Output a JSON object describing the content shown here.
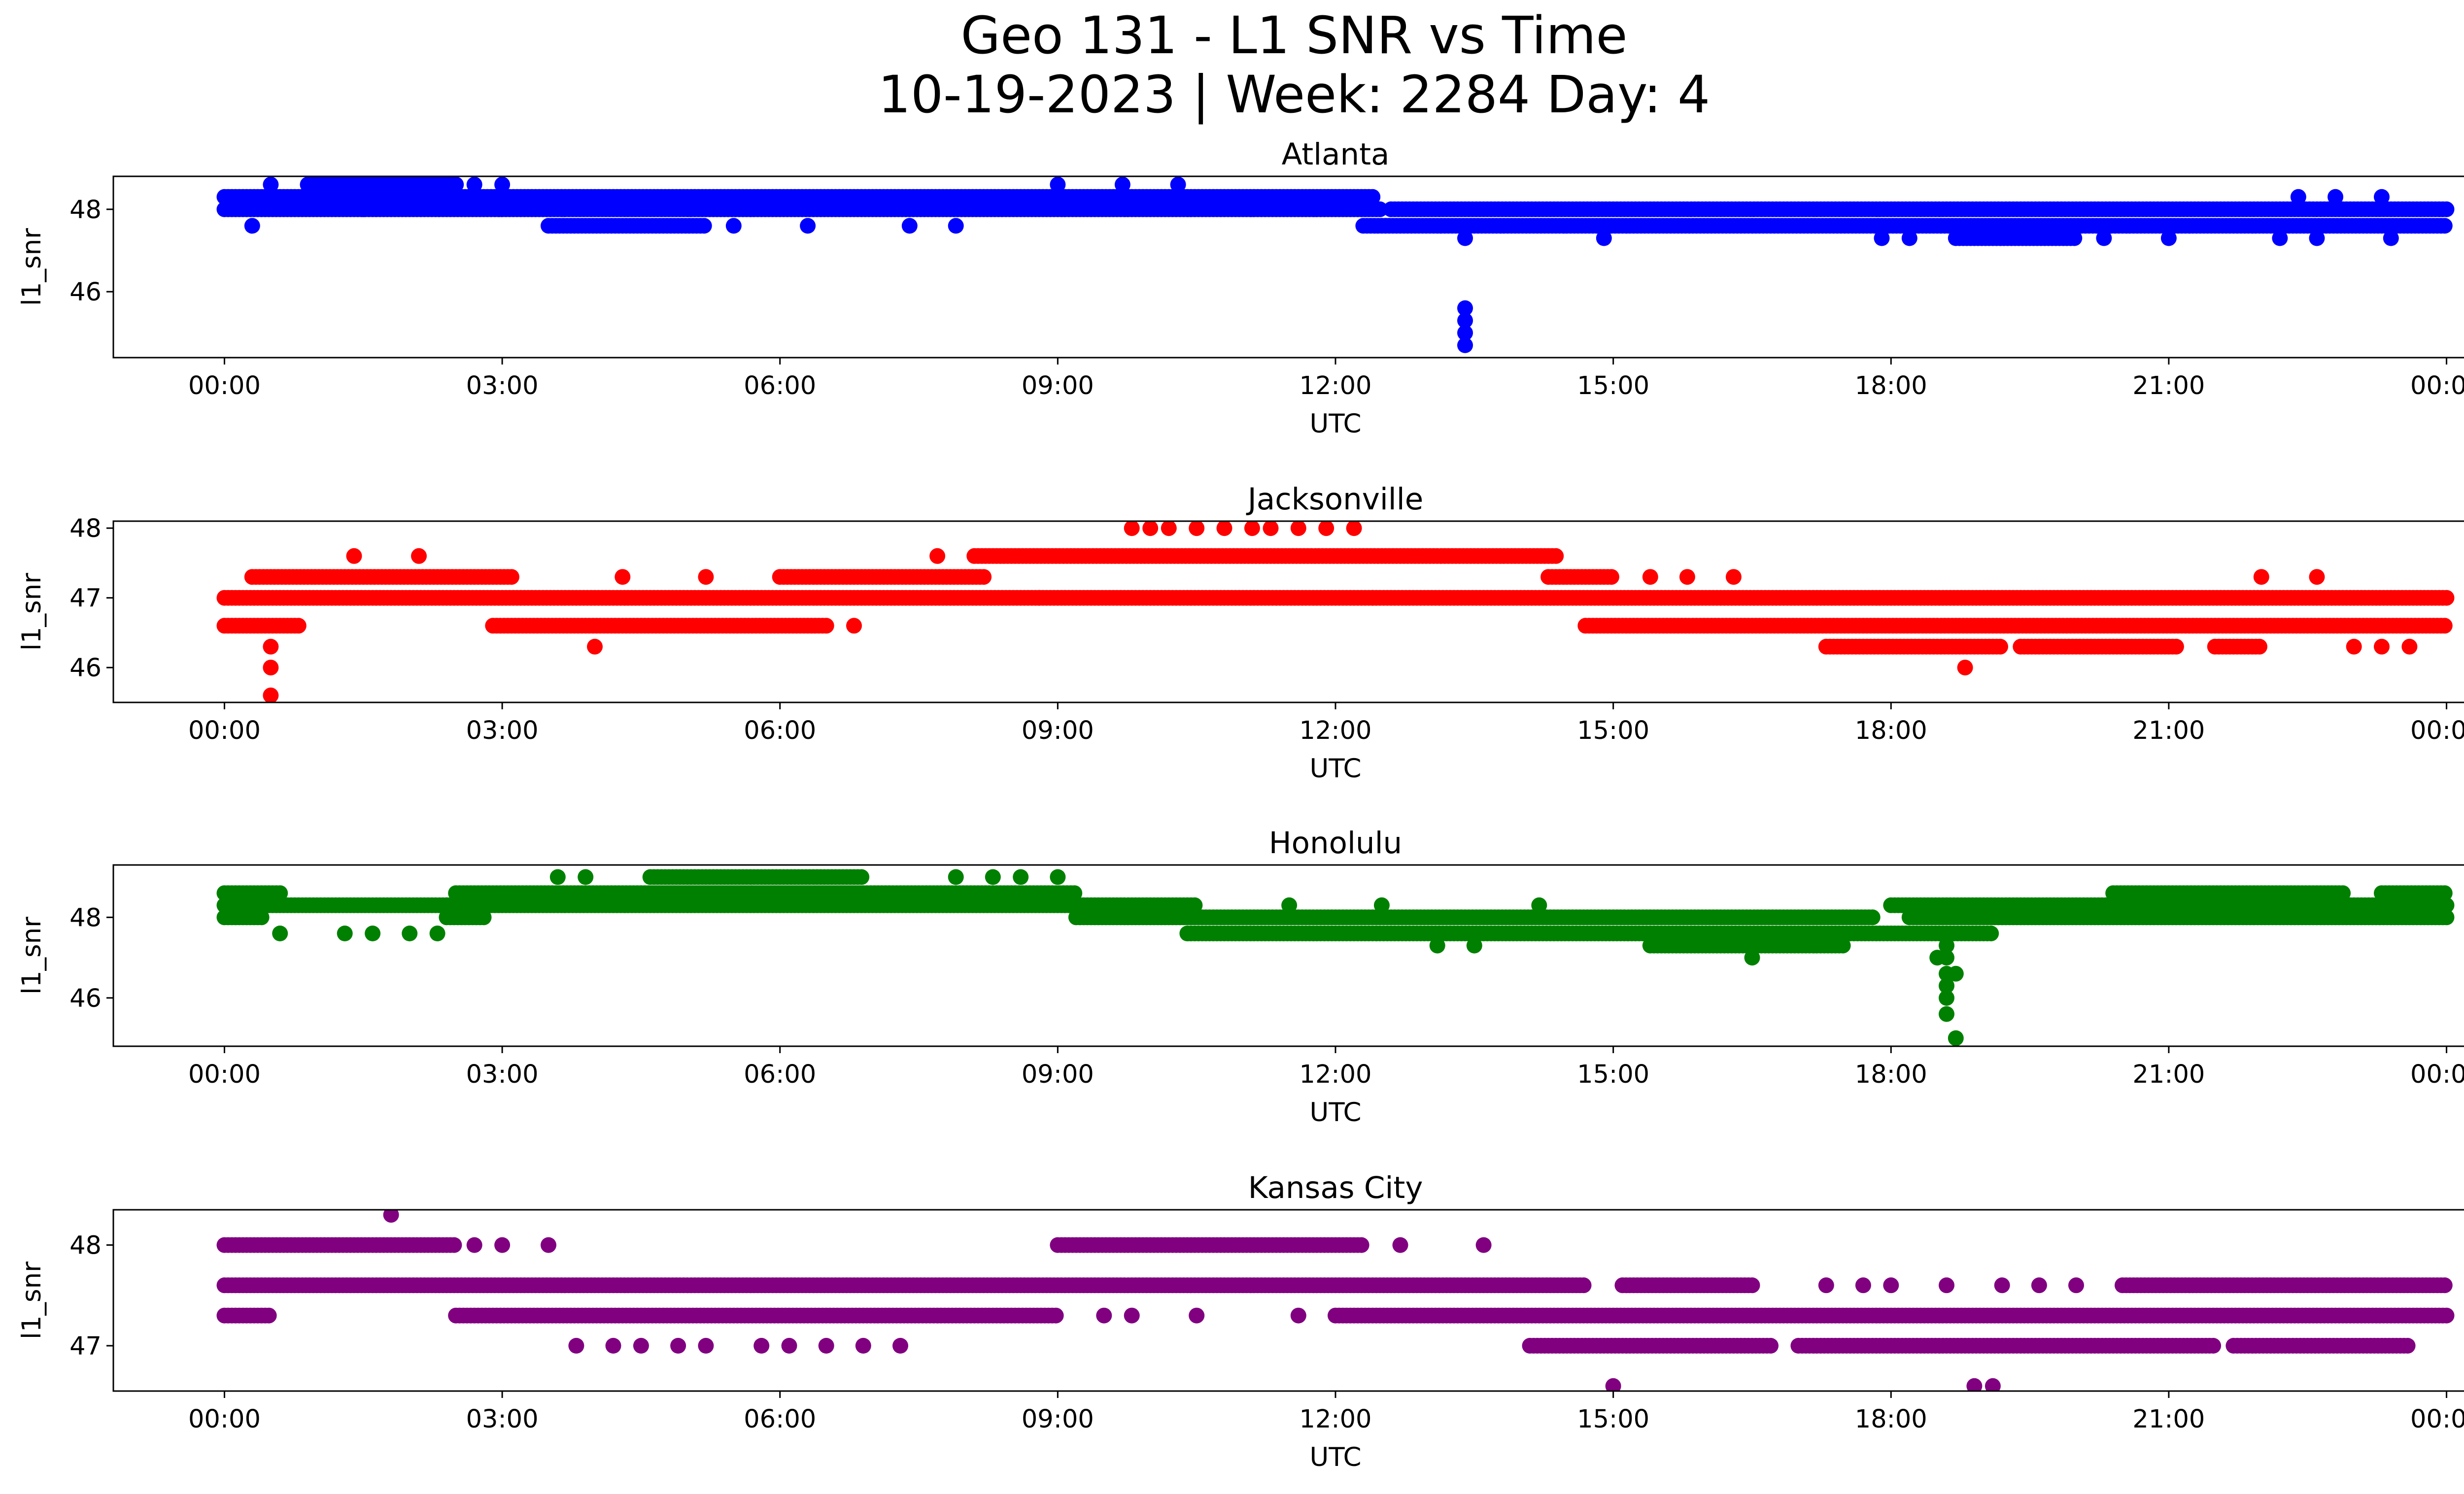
{
  "chart_data": {
    "type": "scatter",
    "title": "Geo 131 - L1 SNR vs Time",
    "subtitle": "10-19-2023 | Week: 2284 Day: 4",
    "xlabel": "UTC",
    "ylabel": "l1_snr",
    "xlim_hours": [
      -1.2,
      25.2
    ],
    "x_ticks": [
      {
        "value": 0,
        "label": "00:00"
      },
      {
        "value": 3,
        "label": "03:00"
      },
      {
        "value": 6,
        "label": "06:00"
      },
      {
        "value": 9,
        "label": "09:00"
      },
      {
        "value": 12,
        "label": "12:00"
      },
      {
        "value": 15,
        "label": "15:00"
      },
      {
        "value": 18,
        "label": "18:00"
      },
      {
        "value": 21,
        "label": "21:00"
      },
      {
        "value": 24,
        "label": "00:00"
      }
    ],
    "panels": [
      {
        "name": "Atlanta",
        "color": "#0000ff",
        "ylim": [
          44.4,
          48.8
        ],
        "y_ticks": [
          {
            "value": 46,
            "label": "46"
          },
          {
            "value": 48,
            "label": "48"
          }
        ],
        "bands": [
          {
            "y": 48.3,
            "ranges": [
              [
                0,
                12.4
              ]
            ]
          },
          {
            "y": 48.0,
            "ranges": [
              [
                0,
                12.5
              ],
              [
                12.6,
                24
              ]
            ]
          },
          {
            "y": 47.6,
            "ranges": [
              [
                3.5,
                5.2
              ],
              [
                12.3,
                24
              ]
            ]
          },
          {
            "y": 48.6,
            "ranges": [
              [
                0.9,
                2.5
              ]
            ]
          },
          {
            "y": 47.3,
            "ranges": [
              [
                18.7,
                20.0
              ]
            ]
          }
        ],
        "points": [
          [
            0.3,
            47.6
          ],
          [
            0.5,
            48.6
          ],
          [
            1.5,
            48.0
          ],
          [
            2.7,
            48.6
          ],
          [
            3.0,
            48.6
          ],
          [
            5.5,
            47.6
          ],
          [
            6.3,
            47.6
          ],
          [
            7.4,
            47.6
          ],
          [
            7.9,
            47.6
          ],
          [
            9.0,
            48.6
          ],
          [
            9.7,
            48.6
          ],
          [
            10.3,
            48.6
          ],
          [
            14.9,
            47.3
          ],
          [
            17.9,
            47.3
          ],
          [
            18.2,
            47.3
          ],
          [
            20.3,
            47.3
          ],
          [
            21.0,
            47.3
          ],
          [
            22.2,
            47.3
          ],
          [
            22.6,
            47.3
          ],
          [
            23.4,
            47.3
          ],
          [
            22.4,
            48.3
          ],
          [
            22.8,
            48.3
          ],
          [
            23.3,
            48.3
          ],
          [
            13.4,
            45.6
          ],
          [
            13.4,
            45.3
          ],
          [
            13.4,
            45.0
          ],
          [
            13.4,
            44.7
          ],
          [
            13.4,
            47.3
          ]
        ]
      },
      {
        "name": "Jacksonville",
        "color": "#ff0000",
        "ylim": [
          45.5,
          48.1
        ],
        "y_ticks": [
          {
            "value": 46,
            "label": "46"
          },
          {
            "value": 47,
            "label": "47"
          },
          {
            "value": 48,
            "label": "48"
          }
        ],
        "bands": [
          {
            "y": 47.0,
            "ranges": [
              [
                0,
                24
              ]
            ]
          },
          {
            "y": 46.6,
            "ranges": [
              [
                0,
                0.8
              ],
              [
                2.9,
                6.5
              ],
              [
                14.7,
                24
              ]
            ]
          },
          {
            "y": 47.3,
            "ranges": [
              [
                0.3,
                3.1
              ],
              [
                6.0,
                8.2
              ],
              [
                14.3,
                15.0
              ]
            ]
          },
          {
            "y": 47.6,
            "ranges": [
              [
                8.1,
                14.4
              ]
            ]
          },
          {
            "y": 46.3,
            "ranges": [
              [
                17.3,
                19.2
              ],
              [
                19.4,
                21.1
              ],
              [
                21.5,
                22.0
              ]
            ]
          }
        ],
        "points": [
          [
            0.5,
            46.3
          ],
          [
            0.5,
            46.0
          ],
          [
            0.5,
            45.6
          ],
          [
            1.4,
            47.6
          ],
          [
            2.1,
            47.6
          ],
          [
            4.0,
            46.3
          ],
          [
            4.3,
            47.3
          ],
          [
            5.2,
            47.3
          ],
          [
            6.8,
            46.6
          ],
          [
            7.7,
            47.6
          ],
          [
            9.8,
            48.0
          ],
          [
            10.0,
            48.0
          ],
          [
            10.2,
            48.0
          ],
          [
            10.5,
            48.0
          ],
          [
            10.8,
            48.0
          ],
          [
            11.1,
            48.0
          ],
          [
            11.3,
            48.0
          ],
          [
            11.6,
            48.0
          ],
          [
            11.9,
            48.0
          ],
          [
            12.2,
            48.0
          ],
          [
            8.8,
            47.0
          ],
          [
            12.4,
            47.0
          ],
          [
            15.4,
            47.3
          ],
          [
            15.8,
            47.3
          ],
          [
            16.3,
            47.3
          ],
          [
            18.8,
            46.0
          ],
          [
            22.0,
            47.3
          ],
          [
            22.6,
            47.3
          ],
          [
            23.0,
            46.3
          ],
          [
            23.3,
            46.3
          ],
          [
            23.6,
            46.3
          ]
        ]
      },
      {
        "name": "Honolulu",
        "color": "#008000",
        "ylim": [
          44.8,
          49.3
        ],
        "y_ticks": [
          {
            "value": 46,
            "label": "46"
          },
          {
            "value": 48,
            "label": "48"
          }
        ],
        "bands": [
          {
            "y": 48.3,
            "ranges": [
              [
                0,
                2.6
              ],
              [
                2.4,
                10.5
              ],
              [
                18.0,
                24
              ]
            ]
          },
          {
            "y": 48.0,
            "ranges": [
              [
                0,
                0.4
              ],
              [
                2.4,
                2.8
              ],
              [
                9.2,
                17.8
              ],
              [
                18.2,
                24
              ]
            ]
          },
          {
            "y": 48.6,
            "ranges": [
              [
                0,
                0.6
              ],
              [
                2.5,
                9.2
              ],
              [
                20.4,
                22.9
              ],
              [
                23.3,
                24
              ]
            ]
          },
          {
            "y": 47.6,
            "ranges": [
              [
                10.4,
                19.1
              ]
            ]
          },
          {
            "y": 47.3,
            "ranges": [
              [
                15.4,
                17.5
              ]
            ]
          },
          {
            "y": 49.0,
            "ranges": [
              [
                4.6,
                6.9
              ]
            ]
          }
        ],
        "points": [
          [
            0.6,
            47.6
          ],
          [
            1.3,
            47.6
          ],
          [
            1.6,
            47.6
          ],
          [
            2.0,
            47.6
          ],
          [
            2.3,
            47.6
          ],
          [
            3.6,
            49.0
          ],
          [
            3.9,
            49.0
          ],
          [
            7.9,
            49.0
          ],
          [
            8.3,
            49.0
          ],
          [
            8.6,
            49.0
          ],
          [
            9.0,
            49.0
          ],
          [
            11.5,
            48.3
          ],
          [
            12.5,
            48.3
          ],
          [
            13.1,
            47.3
          ],
          [
            13.5,
            47.3
          ],
          [
            14.2,
            48.3
          ],
          [
            16.5,
            47.0
          ],
          [
            18.6,
            47.3
          ],
          [
            18.6,
            47.0
          ],
          [
            18.6,
            46.6
          ],
          [
            18.6,
            46.3
          ],
          [
            18.6,
            46.0
          ],
          [
            18.6,
            45.6
          ],
          [
            18.7,
            45.0
          ],
          [
            18.5,
            47.0
          ],
          [
            18.7,
            46.6
          ]
        ]
      },
      {
        "name": "Kansas City",
        "color": "#800080",
        "ylim": [
          46.55,
          48.35
        ],
        "y_ticks": [
          {
            "value": 47,
            "label": "47"
          },
          {
            "value": 48,
            "label": "48"
          }
        ],
        "bands": [
          {
            "y": 47.6,
            "ranges": [
              [
                0,
                14.7
              ],
              [
                15.1,
                16.5
              ],
              [
                20.5,
                24
              ]
            ]
          },
          {
            "y": 47.3,
            "ranges": [
              [
                0,
                0.5
              ],
              [
                2.5,
                9.0
              ],
              [
                12.0,
                24
              ]
            ]
          },
          {
            "y": 48.0,
            "ranges": [
              [
                0,
                2.5
              ],
              [
                9.0,
                12.3
              ]
            ]
          },
          {
            "y": 47.0,
            "ranges": [
              [
                14.1,
                16.7
              ],
              [
                17.0,
                21.5
              ],
              [
                21.7,
                23.6
              ]
            ]
          }
        ],
        "points": [
          [
            1.8,
            48.3
          ],
          [
            2.7,
            48.0
          ],
          [
            3.0,
            48.0
          ],
          [
            3.5,
            48.0
          ],
          [
            3.8,
            47.0
          ],
          [
            4.2,
            47.0
          ],
          [
            4.5,
            47.0
          ],
          [
            4.9,
            47.0
          ],
          [
            5.2,
            47.0
          ],
          [
            5.8,
            47.0
          ],
          [
            6.1,
            47.0
          ],
          [
            6.5,
            47.0
          ],
          [
            6.9,
            47.0
          ],
          [
            7.3,
            47.0
          ],
          [
            9.5,
            47.3
          ],
          [
            9.8,
            47.3
          ],
          [
            10.5,
            47.3
          ],
          [
            11.6,
            47.3
          ],
          [
            12.7,
            48.0
          ],
          [
            13.6,
            48.0
          ],
          [
            15.0,
            46.6
          ],
          [
            18.9,
            46.6
          ],
          [
            19.1,
            46.6
          ],
          [
            17.3,
            47.6
          ],
          [
            17.7,
            47.6
          ],
          [
            18.0,
            47.6
          ],
          [
            18.6,
            47.6
          ],
          [
            19.2,
            47.6
          ],
          [
            19.6,
            47.6
          ],
          [
            20.0,
            47.6
          ]
        ]
      }
    ]
  }
}
